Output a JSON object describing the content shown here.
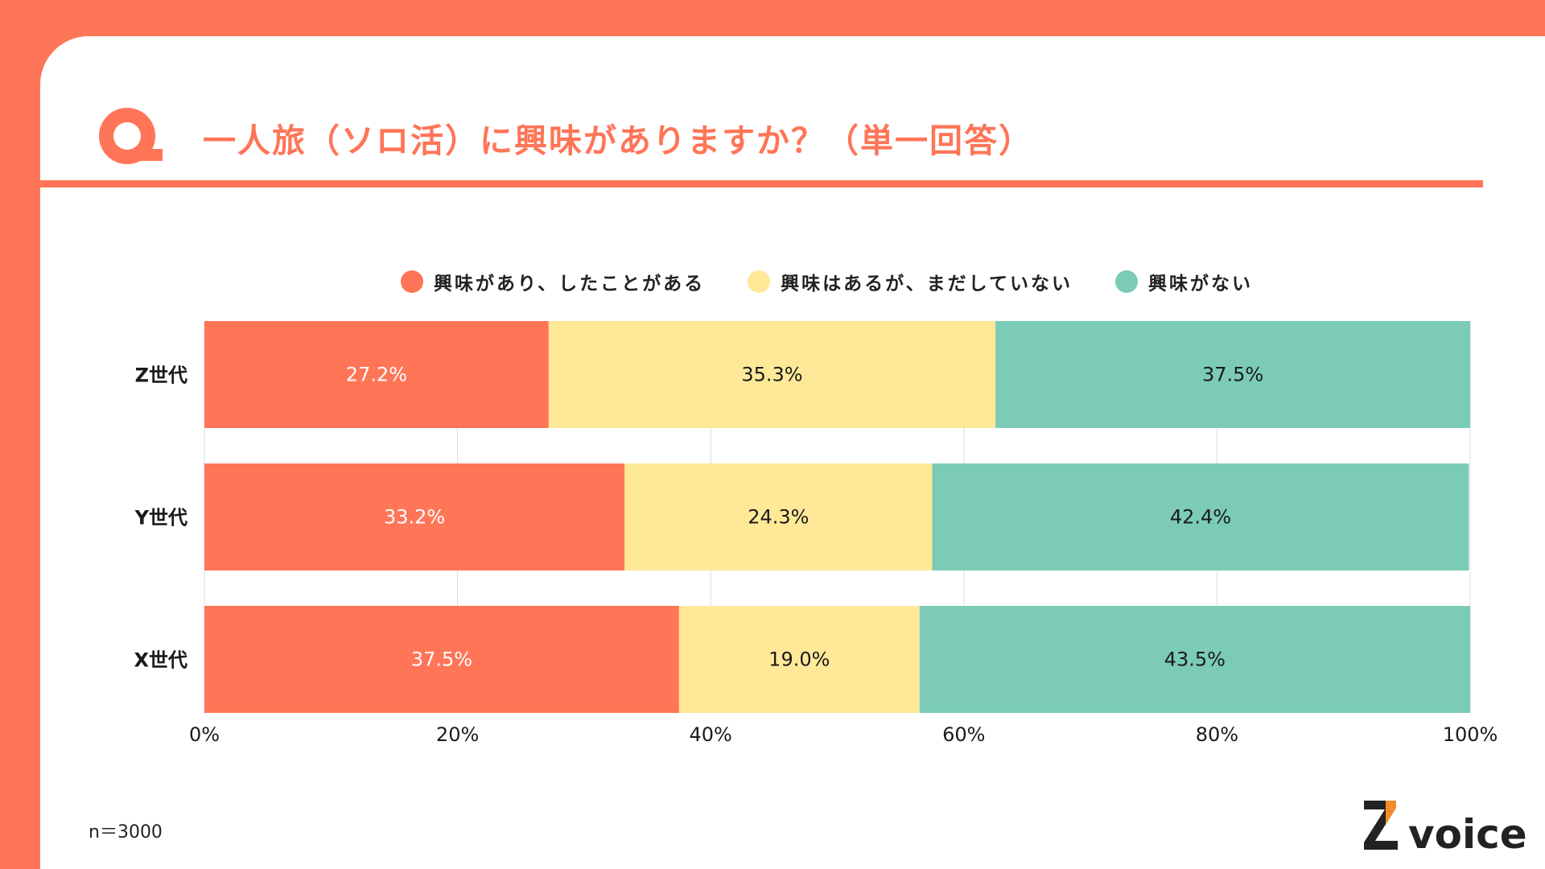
{
  "title": "一人旅（ソロ活）に興味がありますか？（単一回答）",
  "n_label": "n＝3000",
  "logo": {
    "text": "voice",
    "mark": "Z"
  },
  "colors": {
    "accent": "#ff7557",
    "yellow": "#ffe999",
    "teal": "#7bcbb7"
  },
  "icons": {
    "question": "q-letter-icon"
  },
  "chart_data": {
    "type": "bar",
    "orientation": "horizontal",
    "stacked": true,
    "categories": [
      "Z世代",
      "Y世代",
      "X世代"
    ],
    "series": [
      {
        "name": "興味があり、したことがある",
        "color": "#ff7557",
        "values": [
          27.2,
          33.2,
          37.5
        ],
        "labels": [
          "27.2%",
          "33.2%",
          "37.5%"
        ],
        "label_color": "#ffffff"
      },
      {
        "name": "興味はあるが、まだしていない",
        "color": "#ffe999",
        "values": [
          35.3,
          24.3,
          19.0
        ],
        "labels": [
          "35.3%",
          "24.3%",
          "19.0%"
        ],
        "label_color": "#1a1a1a"
      },
      {
        "name": "興味がない",
        "color": "#7bcbb7",
        "values": [
          37.5,
          42.4,
          43.5
        ],
        "labels": [
          "37.5%",
          "42.4%",
          "43.5%"
        ],
        "label_color": "#1a1a1a"
      }
    ],
    "xlim": [
      0,
      100
    ],
    "xticks": [
      "0%",
      "20%",
      "40%",
      "60%",
      "80%",
      "100%"
    ],
    "xtick_values": [
      0,
      20,
      40,
      60,
      80,
      100
    ],
    "grid": true,
    "legend": "top"
  }
}
